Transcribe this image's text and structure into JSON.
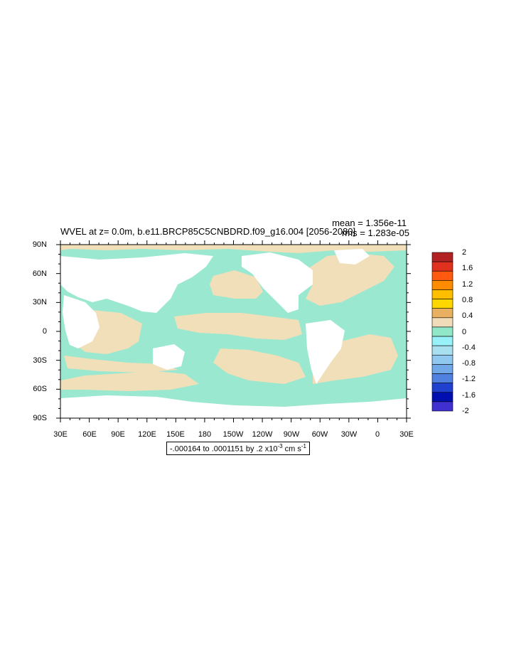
{
  "plot": {
    "title": "WVEL at z=   0.0m, b.e11.BRCP85C5CNBDRD.f09_g16.004 [2056-2080]",
    "mean_text": "mean = 1.356e-11",
    "rms_text": "rms = 1.283e-05",
    "range_prefix": "-.000164 to .0001151 by .2 x10",
    "range_exp": "-3",
    "range_unit": " cm s",
    "range_unit_exp": "-1"
  },
  "axes": {
    "lat_labels": [
      "90N",
      "60N",
      "30N",
      "0",
      "30S",
      "60S",
      "90S"
    ],
    "lon_labels": [
      "30E",
      "60E",
      "90E",
      "120E",
      "150E",
      "180",
      "150W",
      "120W",
      "90W",
      "60W",
      "30W",
      "0",
      "30E"
    ]
  },
  "colorbar": {
    "labels": [
      "2",
      "1.6",
      "1.2",
      "0.8",
      "0.4",
      "0",
      "-0.4",
      "-0.8",
      "-1.2",
      "-1.6",
      "-2"
    ],
    "colors": [
      "#b22222",
      "#e0301e",
      "#ff5a10",
      "#ff8c00",
      "#ffbf00",
      "#ffd700",
      "#e8b060",
      "#f0dcb8",
      "#90e8c8",
      "#98f0f8",
      "#a8e0f0",
      "#90c8f0",
      "#70a8e8",
      "#5080e0",
      "#2040d0",
      "#0010b0",
      "#4030d0"
    ]
  },
  "colors": {
    "positive_fill": "#f0dfb8",
    "negative_fill": "#9be8d0",
    "land": "#ffffff"
  }
}
